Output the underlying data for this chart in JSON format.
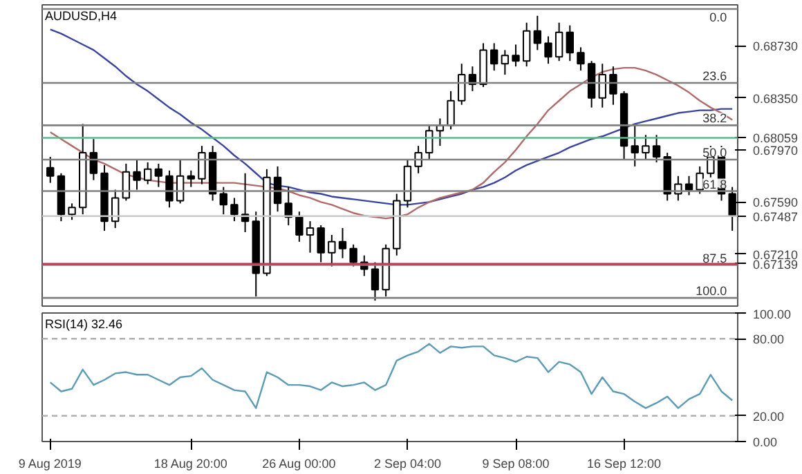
{
  "chart_data": [
    {
      "type": "candlestick",
      "title": "AUDUSD,H4",
      "categories": [
        null,
        null,
        null,
        null,
        null,
        null,
        null,
        null,
        null,
        null,
        null,
        null,
        null,
        null,
        null,
        null,
        null,
        null,
        null,
        null,
        null,
        null,
        null,
        null,
        null,
        null,
        null,
        null,
        null,
        null,
        null,
        null,
        null,
        null,
        null,
        null,
        null,
        null,
        null,
        null,
        null,
        null,
        null,
        null,
        null,
        null,
        null,
        null,
        null,
        null,
        null,
        null,
        null,
        null,
        null,
        null,
        null,
        null,
        null,
        null,
        null,
        null,
        null,
        null
      ],
      "ohlc": [
        [
          0.6784,
          0.6792,
          0.6773,
          0.6778
        ],
        [
          0.6778,
          0.678,
          0.6745,
          0.675
        ],
        [
          0.675,
          0.6758,
          0.6746,
          0.6755
        ],
        [
          0.6755,
          0.6816,
          0.675,
          0.6795
        ],
        [
          0.6795,
          0.6805,
          0.6775,
          0.678
        ],
        [
          0.678,
          0.6786,
          0.6738,
          0.6745
        ],
        [
          0.6745,
          0.6768,
          0.674,
          0.6762
        ],
        [
          0.6762,
          0.6787,
          0.676,
          0.6781
        ],
        [
          0.6781,
          0.679,
          0.6768,
          0.6775
        ],
        [
          0.6775,
          0.6788,
          0.6772,
          0.6783
        ],
        [
          0.6783,
          0.6787,
          0.677,
          0.6778
        ],
        [
          0.6778,
          0.6782,
          0.6755,
          0.676
        ],
        [
          0.676,
          0.679,
          0.6758,
          0.6778
        ],
        [
          0.6778,
          0.6782,
          0.677,
          0.6776
        ],
        [
          0.6776,
          0.68,
          0.6772,
          0.6795
        ],
        [
          0.6795,
          0.68,
          0.676,
          0.6765
        ],
        [
          0.6765,
          0.677,
          0.675,
          0.6757
        ],
        [
          0.6757,
          0.6762,
          0.6745,
          0.675
        ],
        [
          0.675,
          0.678,
          0.6737,
          0.6745
        ],
        [
          0.6745,
          0.6752,
          0.669,
          0.6707
        ],
        [
          0.6707,
          0.6783,
          0.6705,
          0.6777
        ],
        [
          0.6777,
          0.6785,
          0.6752,
          0.6758
        ],
        [
          0.6758,
          0.677,
          0.6742,
          0.6748
        ],
        [
          0.6748,
          0.6752,
          0.673,
          0.6735
        ],
        [
          0.6735,
          0.6745,
          0.6722,
          0.674
        ],
        [
          0.674,
          0.6742,
          0.6715,
          0.6722
        ],
        [
          0.6722,
          0.6735,
          0.6712,
          0.673
        ],
        [
          0.673,
          0.674,
          0.6718,
          0.6725
        ],
        [
          0.6725,
          0.6728,
          0.6712,
          0.6715
        ],
        [
          0.6715,
          0.672,
          0.6705,
          0.671
        ],
        [
          0.671,
          0.6715,
          0.6687,
          0.6695
        ],
        [
          0.6695,
          0.6728,
          0.669,
          0.6725
        ],
        [
          0.6725,
          0.6765,
          0.672,
          0.676
        ],
        [
          0.676,
          0.679,
          0.6755,
          0.6785
        ],
        [
          0.6785,
          0.68,
          0.678,
          0.6795
        ],
        [
          0.6795,
          0.6815,
          0.679,
          0.6811
        ],
        [
          0.6811,
          0.682,
          0.68,
          0.6815
        ],
        [
          0.6815,
          0.684,
          0.6812,
          0.6833
        ],
        [
          0.6833,
          0.686,
          0.683,
          0.6852
        ],
        [
          0.6852,
          0.6858,
          0.684,
          0.6845
        ],
        [
          0.6845,
          0.6875,
          0.6843,
          0.687
        ],
        [
          0.687,
          0.6875,
          0.6855,
          0.686
        ],
        [
          0.686,
          0.687,
          0.6852,
          0.6866
        ],
        [
          0.6866,
          0.6874,
          0.6858,
          0.6862
        ],
        [
          0.6862,
          0.689,
          0.6858,
          0.6884
        ],
        [
          0.6884,
          0.6895,
          0.687,
          0.6875
        ],
        [
          0.6875,
          0.688,
          0.686,
          0.6865
        ],
        [
          0.6865,
          0.689,
          0.6862,
          0.6883
        ],
        [
          0.6883,
          0.6888,
          0.6862,
          0.6868
        ],
        [
          0.6868,
          0.6872,
          0.6855,
          0.686
        ],
        [
          0.686,
          0.6862,
          0.6828,
          0.6835
        ],
        [
          0.6835,
          0.686,
          0.6828,
          0.6852
        ],
        [
          0.6852,
          0.6858,
          0.683,
          0.6838
        ],
        [
          0.6838,
          0.684,
          0.679,
          0.68
        ],
        [
          0.68,
          0.6815,
          0.6785,
          0.6795
        ],
        [
          0.6795,
          0.6808,
          0.679,
          0.68
        ],
        [
          0.68,
          0.6808,
          0.6788,
          0.6792
        ],
        [
          0.6792,
          0.6795,
          0.676,
          0.6765
        ],
        [
          0.6765,
          0.6778,
          0.676,
          0.6772
        ],
        [
          0.6772,
          0.6778,
          0.6764,
          0.6768
        ],
        [
          0.6768,
          0.6785,
          0.6765,
          0.678
        ],
        [
          0.678,
          0.68,
          0.6777,
          0.6792
        ],
        [
          0.6792,
          0.68,
          0.676,
          0.6765
        ],
        [
          0.6765,
          0.677,
          0.6738,
          0.6749
        ]
      ],
      "series": [
        {
          "type": "line",
          "color": "#3a44a0",
          "values": [
            0.6885,
            0.6882,
            0.6878,
            0.6874,
            0.687,
            0.6864,
            0.6858,
            0.6851,
            0.6845,
            0.684,
            0.6834,
            0.6828,
            0.6823,
            0.6817,
            0.6812,
            0.6806,
            0.68,
            0.6793,
            0.6787,
            0.678,
            0.6773,
            0.6771,
            0.677,
            0.6768,
            0.6766,
            0.6765,
            0.6763,
            0.6762,
            0.6761,
            0.676,
            0.6759,
            0.6758,
            0.6757,
            0.6757,
            0.6758,
            0.6759,
            0.6761,
            0.6763,
            0.6765,
            0.6768,
            0.677,
            0.6773,
            0.6777,
            0.6782,
            0.6786,
            0.6789,
            0.6792,
            0.6795,
            0.6799,
            0.6802,
            0.6805,
            0.6807,
            0.681,
            0.6813,
            0.6816,
            0.6818,
            0.682,
            0.6822,
            0.6824,
            0.6825,
            0.6826,
            0.6826,
            0.6827,
            0.6827
          ]
        },
        {
          "type": "line",
          "color": "#b06a6a",
          "values": [
            0.681,
            0.6805,
            0.68,
            0.6795,
            0.679,
            0.6787,
            0.6783,
            0.6779,
            0.6777,
            0.6775,
            0.6774,
            0.6773,
            0.6773,
            0.6773,
            0.6773,
            0.6773,
            0.6773,
            0.6773,
            0.6772,
            0.6771,
            0.677,
            0.6769,
            0.6767,
            0.6764,
            0.6762,
            0.6759,
            0.6757,
            0.6754,
            0.6751,
            0.6749,
            0.6748,
            0.6747,
            0.6748,
            0.675,
            0.6755,
            0.6759,
            0.6762,
            0.6764,
            0.6766,
            0.6768,
            0.6773,
            0.6781,
            0.6788,
            0.6797,
            0.6807,
            0.6816,
            0.6826,
            0.6833,
            0.684,
            0.6845,
            0.685,
            0.6854,
            0.6856,
            0.6857,
            0.6857,
            0.6855,
            0.6852,
            0.6848,
            0.6844,
            0.6839,
            0.6833,
            0.6828,
            0.6824,
            0.6819
          ]
        }
      ],
      "ylim": [
        0.6683,
        0.6903
      ],
      "yticks": [
        {
          "value": 0.6873,
          "label": "0.68730"
        },
        {
          "value": 0.6835,
          "label": "0.68350"
        },
        {
          "value": 0.68059,
          "label": "0.68059"
        },
        {
          "value": 0.6797,
          "label": "0.67970"
        },
        {
          "value": 0.6759,
          "label": "0.67590"
        },
        {
          "value": 0.67487,
          "label": "0.67487"
        },
        {
          "value": 0.6721,
          "label": "0.67210"
        },
        {
          "value": 0.67139,
          "label": "0.67139"
        }
      ],
      "ref_lines": [
        {
          "axis": "y",
          "value": 0.69,
          "color": "#808080"
        },
        {
          "axis": "y",
          "value": 0.6846,
          "color": "#808080"
        },
        {
          "axis": "y",
          "value": 0.6815,
          "color": "#808080"
        },
        {
          "axis": "y",
          "value": 0.679,
          "color": "#808080"
        },
        {
          "axis": "y",
          "value": 0.6767,
          "color": "#808080"
        },
        {
          "axis": "y",
          "value": 0.6713,
          "color": "#808080"
        },
        {
          "axis": "y",
          "value": 0.6689,
          "color": "#808080"
        },
        {
          "axis": "y",
          "value": 0.68059,
          "color": "#5fb88a"
        },
        {
          "axis": "y",
          "value": 0.67487,
          "color": "#c8c8c8"
        },
        {
          "axis": "y",
          "value": 0.67139,
          "color": "#c0384f"
        }
      ],
      "annotations": [
        {
          "text": "0.0",
          "y": 0.69
        },
        {
          "text": "23.6",
          "y": 0.6846
        },
        {
          "text": "38.2",
          "y": 0.6815
        },
        {
          "text": "50.0",
          "y": 0.679
        },
        {
          "text": "61.8",
          "y": 0.6767
        },
        {
          "text": "87.5",
          "y": 0.6713
        },
        {
          "text": "100.0",
          "y": 0.6689
        }
      ],
      "grid": false,
      "tick_labels": "y"
    },
    {
      "type": "line",
      "title": "RSI(14) 32.46",
      "categories": [
        "9 Aug 2019",
        null,
        null,
        null,
        null,
        null,
        null,
        null,
        null,
        null,
        null,
        null,
        null,
        "18 Aug 20:00",
        null,
        null,
        null,
        null,
        null,
        null,
        null,
        null,
        null,
        "26 Aug 00:00",
        null,
        null,
        null,
        null,
        null,
        null,
        null,
        null,
        null,
        "2 Sep 04:00",
        null,
        null,
        null,
        null,
        null,
        null,
        null,
        null,
        null,
        "9 Sep 08:00",
        null,
        null,
        null,
        null,
        null,
        null,
        null,
        null,
        null,
        "16 Sep 12:00",
        null,
        null,
        null,
        null,
        null,
        null,
        null,
        null,
        null,
        null
      ],
      "series": [
        {
          "color": "#5b9bb5",
          "values": [
            46,
            39,
            41,
            56,
            44,
            48,
            53,
            54,
            52,
            52,
            48,
            44,
            50,
            51,
            57,
            48,
            44,
            40,
            39,
            26,
            54,
            50,
            44,
            44,
            43,
            40,
            46,
            43,
            44,
            46,
            40,
            44,
            63,
            67,
            70,
            76,
            69,
            74,
            73,
            74,
            74,
            67,
            65,
            62,
            66,
            65,
            54,
            62,
            60,
            54,
            37,
            50,
            39,
            37,
            31,
            26,
            30,
            35,
            26,
            33,
            37,
            52,
            39,
            32
          ]
        }
      ],
      "ylim": [
        0,
        100
      ],
      "yticks": [
        {
          "value": 100,
          "label": "100.00"
        },
        {
          "value": 80,
          "label": "80.00"
        },
        {
          "value": 20,
          "label": "20.00"
        },
        {
          "value": 0,
          "label": "0.00"
        }
      ],
      "ref_lines": [
        {
          "axis": "y",
          "value": 80,
          "color": "#b0b0b0",
          "line_style": "dashed"
        },
        {
          "axis": "y",
          "value": 20,
          "color": "#b0b0b0",
          "line_style": "dashed"
        }
      ],
      "grid": false
    }
  ]
}
